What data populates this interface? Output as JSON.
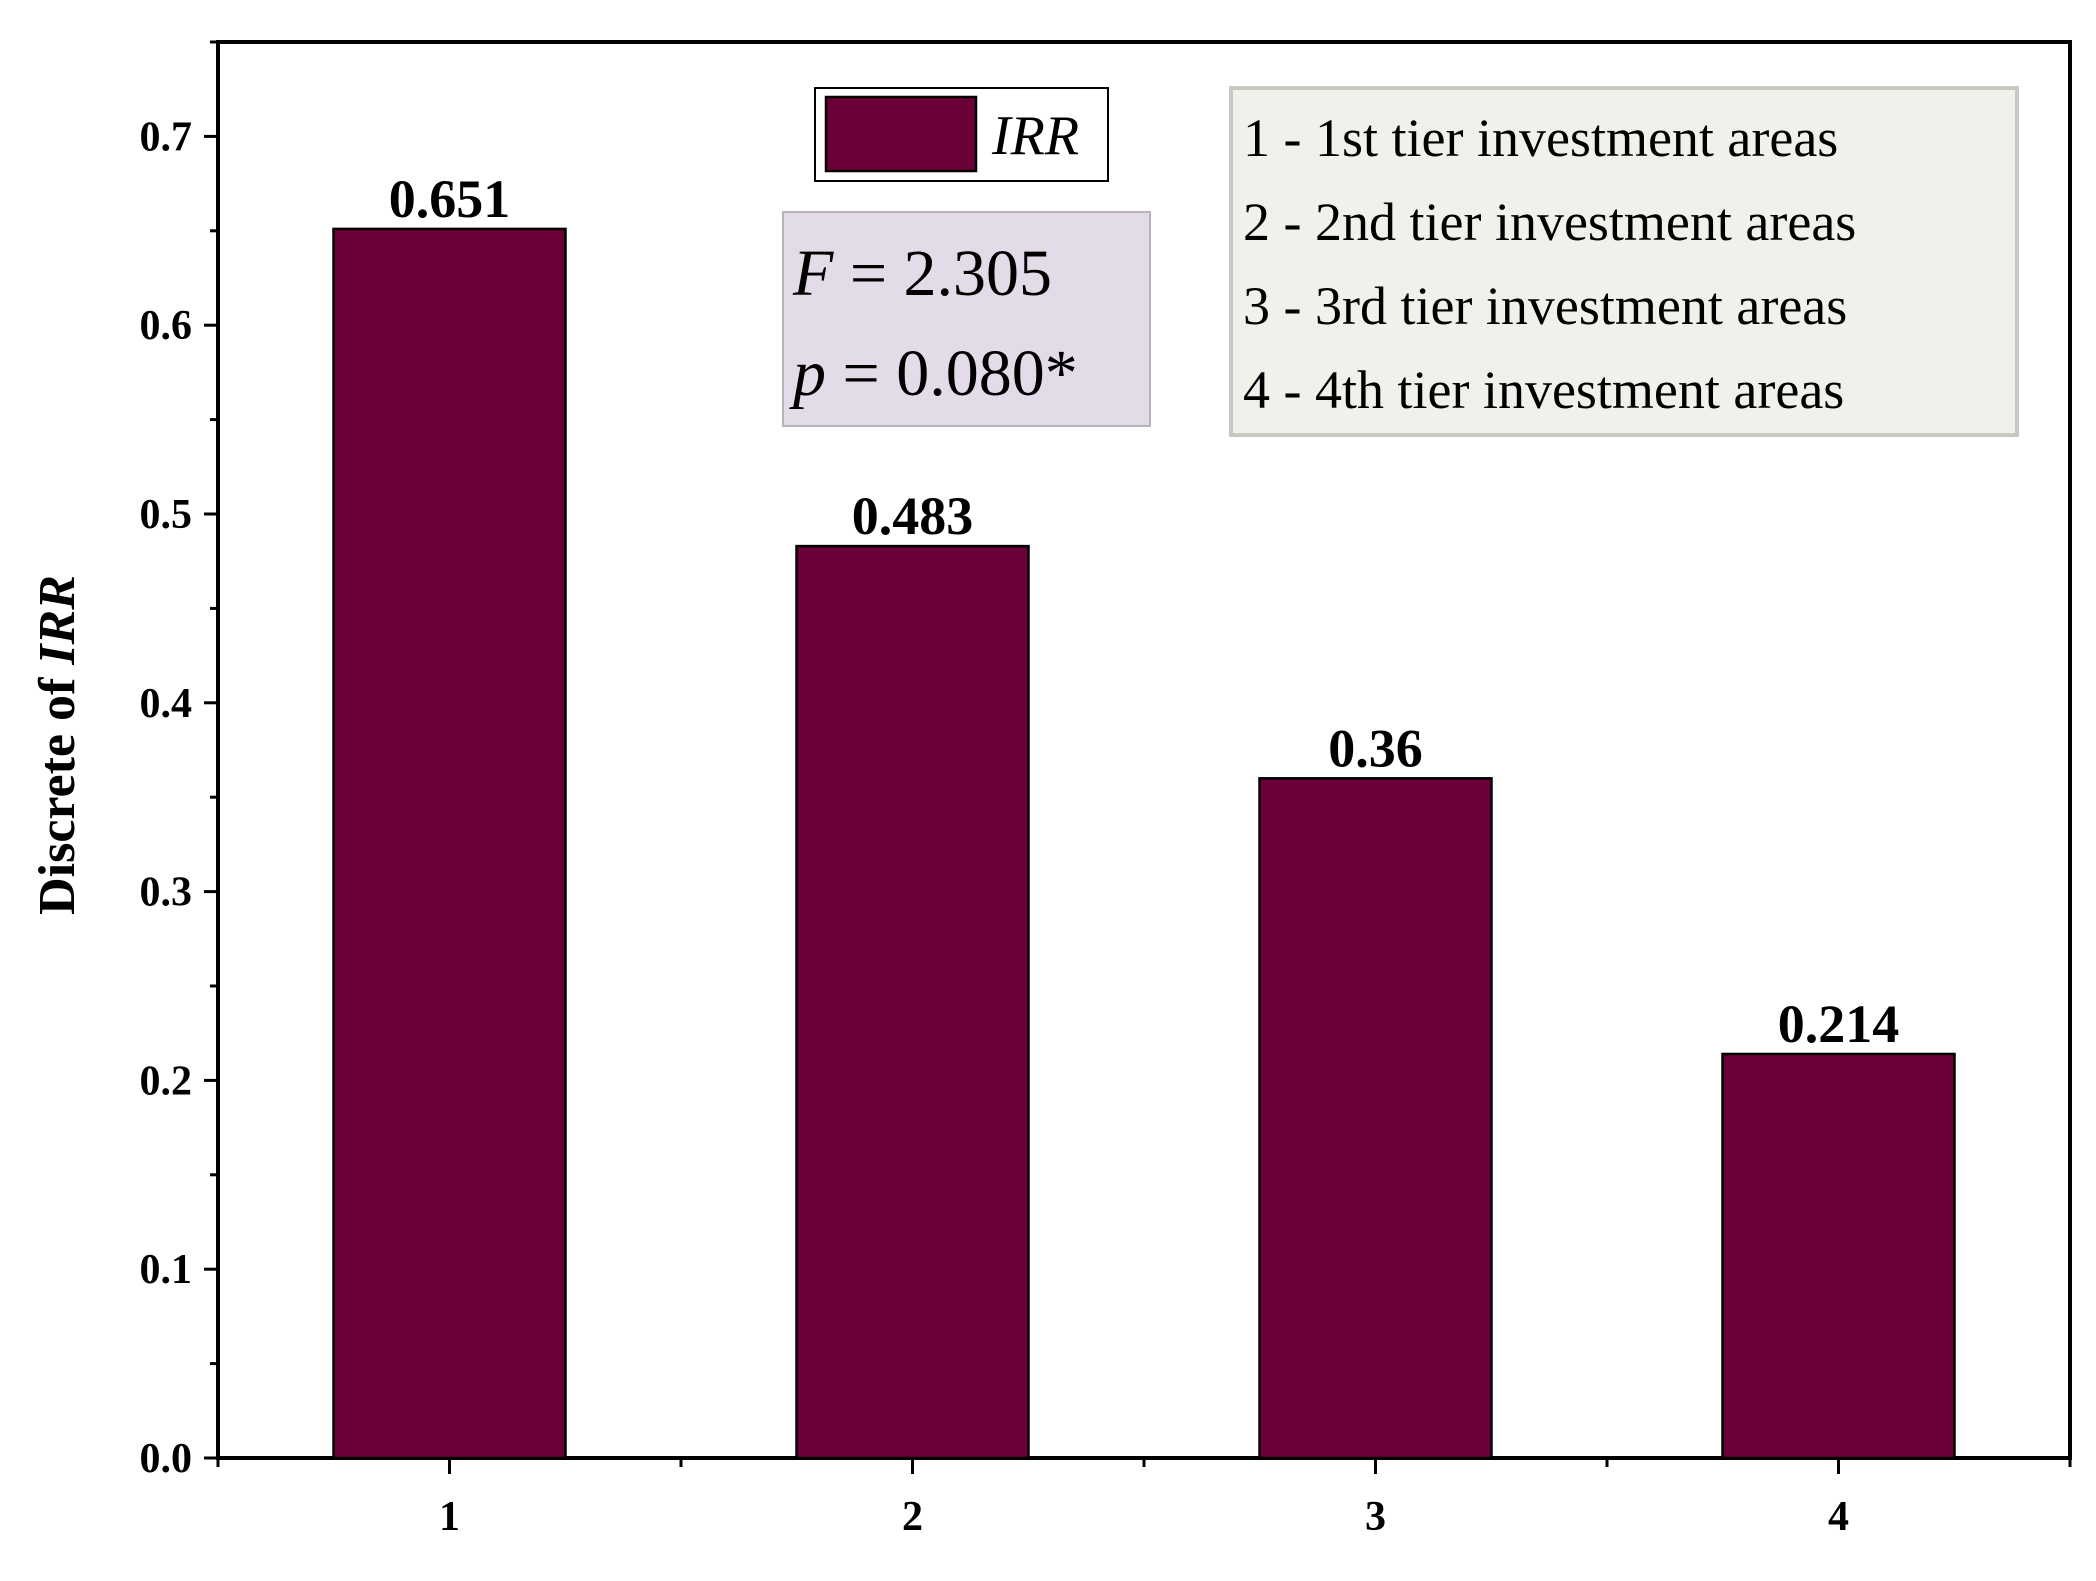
{
  "chart_data": {
    "type": "bar",
    "categories": [
      "1",
      "2",
      "3",
      "4"
    ],
    "series": [
      {
        "name": "IRR",
        "values": [
          0.651,
          0.483,
          0.36,
          0.214
        ]
      }
    ],
    "data_labels": [
      "0.651",
      "0.483",
      "0.36",
      "0.214"
    ],
    "ylabel_prefix": "Discrete of ",
    "ylabel_italic": "IRR",
    "xlabel": "",
    "ylim": [
      0,
      0.75
    ],
    "yticks": [
      0.0,
      0.1,
      0.2,
      0.3,
      0.4,
      0.5,
      0.6,
      0.7
    ],
    "ytick_labels": [
      "0.0",
      "0.1",
      "0.2",
      "0.3",
      "0.4",
      "0.5",
      "0.6",
      "0.7"
    ],
    "legend": {
      "label": "IRR",
      "placement": "top-center"
    },
    "bar_color": "#6b0039",
    "stats": {
      "f_symbol": "F",
      "f_text": " = 2.305",
      "p_symbol": "p",
      "p_text": " = 0.080*",
      "background": "#e3dbe8"
    },
    "category_key": {
      "background": "#f1f1ec",
      "items": [
        "1 - 1st tier investment areas",
        "2 - 2nd tier investment areas",
        "3 - 3rd tier investment areas",
        "4 - 4th tier investment areas"
      ]
    },
    "grid": false
  }
}
